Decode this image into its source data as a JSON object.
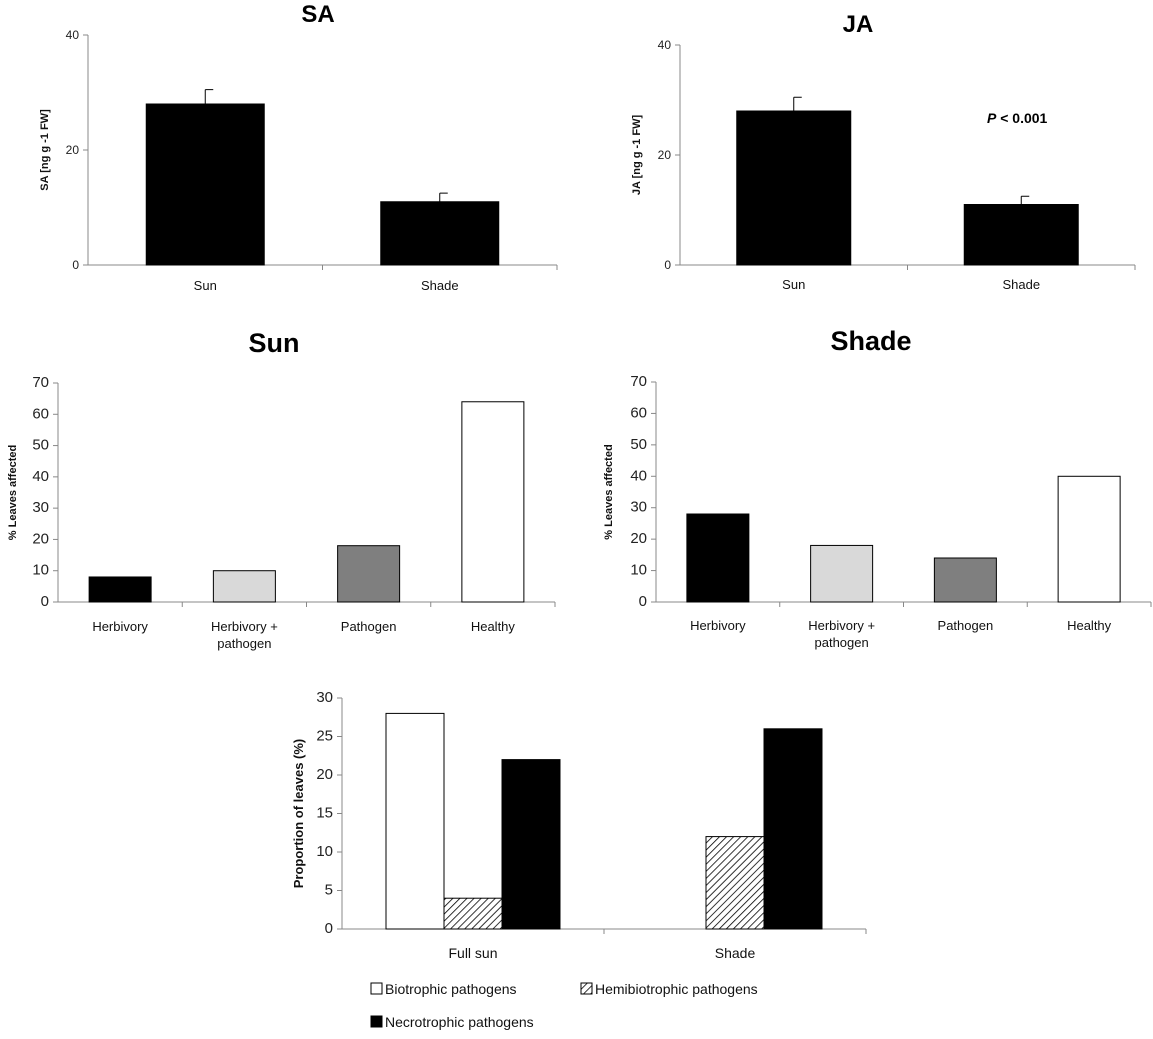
{
  "chart_data": [
    {
      "id": "sa",
      "type": "bar",
      "title": "SA",
      "ylabel": "SA [ng  g -1 FW]",
      "xlabel": "",
      "categories": [
        "Sun",
        "Shade"
      ],
      "values": [
        28,
        11
      ],
      "errors": [
        2.5,
        1.5
      ],
      "ylim": [
        0,
        40
      ],
      "yticks": [
        0,
        20,
        40
      ],
      "colors": [
        "#000000",
        "#000000"
      ]
    },
    {
      "id": "ja",
      "type": "bar",
      "title": "JA",
      "ylabel": "JA [ng  g -1 FW]",
      "xlabel": "",
      "categories": [
        "Sun",
        "Shade"
      ],
      "values": [
        28,
        11
      ],
      "errors": [
        2.5,
        1.5
      ],
      "ylim": [
        0,
        40
      ],
      "yticks": [
        0,
        20,
        40
      ],
      "colors": [
        "#000000",
        "#000000"
      ],
      "annotation_italic": "P",
      "annotation_rest": " < 0.001"
    },
    {
      "id": "sun",
      "type": "bar",
      "title": "Sun",
      "ylabel": "% Leaves affected",
      "xlabel": "",
      "categories": [
        "Herbivory",
        "Herbivory +|pathogen",
        "Pathogen",
        "Healthy"
      ],
      "values": [
        8,
        10,
        18,
        64
      ],
      "ylim": [
        0,
        70
      ],
      "yticks": [
        0,
        10,
        20,
        30,
        40,
        50,
        60,
        70
      ],
      "colors": [
        "#000000",
        "#d9d9d9",
        "#7f7f7f",
        "#ffffff"
      ]
    },
    {
      "id": "shade",
      "type": "bar",
      "title": "Shade",
      "ylabel": "% Leaves affected",
      "xlabel": "",
      "categories": [
        "Herbivory",
        "Herbivory +|pathogen",
        "Pathogen",
        "Healthy"
      ],
      "values": [
        28,
        18,
        14,
        40
      ],
      "ylim": [
        0,
        70
      ],
      "yticks": [
        0,
        10,
        20,
        30,
        40,
        50,
        60,
        70
      ],
      "colors": [
        "#000000",
        "#d9d9d9",
        "#7f7f7f",
        "#ffffff"
      ]
    },
    {
      "id": "proportion",
      "type": "bar",
      "title": "",
      "ylabel": "Proportion of leaves (%)",
      "xlabel": "",
      "categories": [
        "Full sun",
        "Shade"
      ],
      "ylim": [
        0,
        30
      ],
      "yticks": [
        0,
        5,
        10,
        15,
        20,
        25,
        30
      ],
      "series": [
        {
          "name": "Biotrophic pathogens",
          "values": [
            28,
            0
          ],
          "fill": "white"
        },
        {
          "name": "Hemibiotrophic pathogens",
          "values": [
            4,
            12
          ],
          "fill": "hatch"
        },
        {
          "name": "Necrotrophic pathogens",
          "values": [
            22,
            26
          ],
          "fill": "black"
        }
      ],
      "legend_position": "bottom"
    }
  ]
}
